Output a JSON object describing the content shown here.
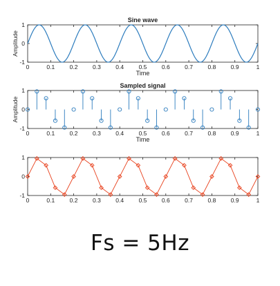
{
  "caption": "Fs = 5Hz",
  "colors": {
    "sine": "#2b7bbd",
    "stem": "#2b7bbd",
    "red": "#e8401c",
    "axis": "#222222"
  },
  "chart_data": [
    {
      "type": "line",
      "title": "Sine wave",
      "xlabel": "Time",
      "ylabel": "Amplitude",
      "xlim": [
        0,
        1
      ],
      "ylim": [
        -1,
        1
      ],
      "xticks": [
        "0",
        "0.1",
        "0.2",
        "0.3",
        "0.4",
        "0.5",
        "0.6",
        "0.7",
        "0.8",
        "0.9",
        "1"
      ],
      "yticks": [
        "-1",
        "0",
        "1"
      ],
      "function": "y = sin(2*pi*5*t)",
      "frequency_hz": 5
    },
    {
      "type": "stem",
      "title": "Sampled signal",
      "xlabel": "Time",
      "ylabel": "Amplitude",
      "xlim": [
        0,
        1
      ],
      "ylim": [
        -1,
        1
      ],
      "xticks": [
        "0",
        "0.1",
        "0.2",
        "0.3",
        "0.4",
        "0.5",
        "0.6",
        "0.7",
        "0.8",
        "0.9",
        "1"
      ],
      "yticks": [
        "-1",
        "0",
        "1"
      ],
      "x": [
        0,
        0.04,
        0.08,
        0.12,
        0.16,
        0.2,
        0.24,
        0.28,
        0.32,
        0.36,
        0.4,
        0.44,
        0.48,
        0.52,
        0.56,
        0.6,
        0.64,
        0.68,
        0.72,
        0.76,
        0.8,
        0.84,
        0.88,
        0.92,
        0.96,
        1.0
      ],
      "y": [
        0,
        0.95,
        0.59,
        -0.59,
        -0.95,
        0,
        0.95,
        0.59,
        -0.59,
        -0.95,
        0,
        0.95,
        0.59,
        -0.59,
        -0.95,
        0,
        0.95,
        0.59,
        -0.59,
        -0.95,
        0,
        0.95,
        0.59,
        -0.59,
        -0.95,
        0
      ]
    },
    {
      "type": "line",
      "title": "",
      "xlabel": "",
      "ylabel": "",
      "xlim": [
        0,
        1
      ],
      "ylim": [
        -1,
        1
      ],
      "xticks": [
        "0",
        "0.1",
        "0.2",
        "0.3",
        "0.4",
        "0.5",
        "0.6",
        "0.7",
        "0.8",
        "0.9",
        "1"
      ],
      "yticks": [
        "-1",
        "0",
        "1"
      ],
      "markers": "diamond",
      "x": [
        0,
        0.04,
        0.08,
        0.12,
        0.16,
        0.2,
        0.24,
        0.28,
        0.32,
        0.36,
        0.4,
        0.44,
        0.48,
        0.52,
        0.56,
        0.6,
        0.64,
        0.68,
        0.72,
        0.76,
        0.8,
        0.84,
        0.88,
        0.92,
        0.96,
        1.0
      ],
      "y": [
        0,
        0.95,
        0.59,
        -0.59,
        -0.95,
        0,
        0.95,
        0.59,
        -0.59,
        -0.95,
        0,
        0.95,
        0.59,
        -0.59,
        -0.95,
        0,
        0.95,
        0.59,
        -0.59,
        -0.95,
        0,
        0.95,
        0.59,
        -0.59,
        -0.95,
        0
      ]
    }
  ]
}
